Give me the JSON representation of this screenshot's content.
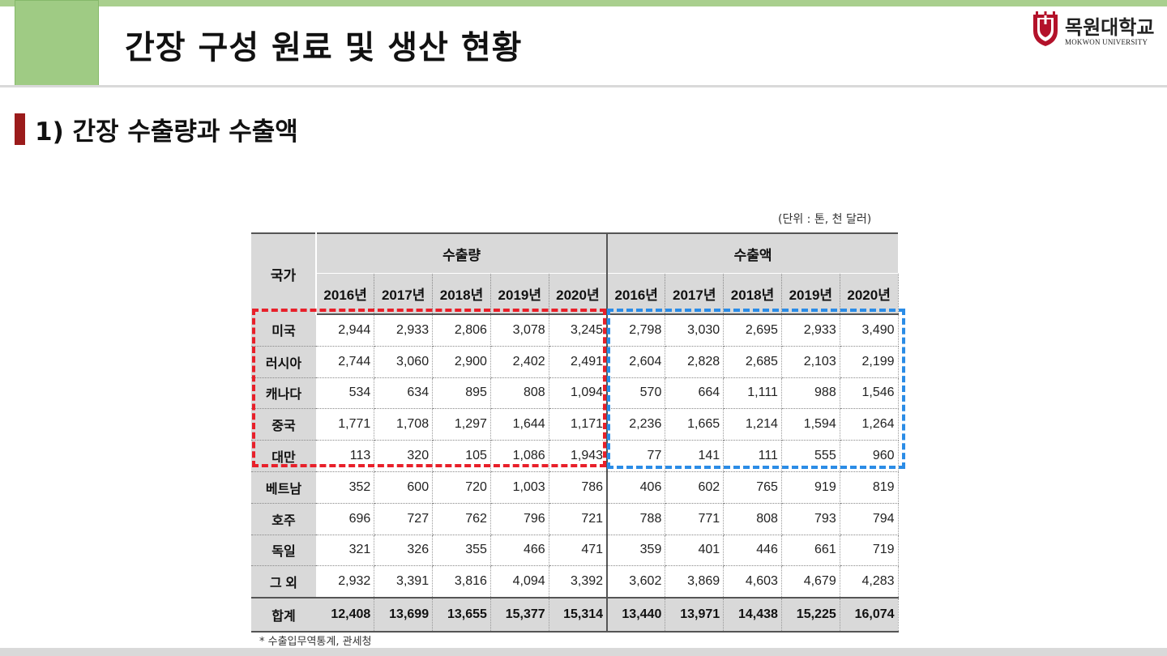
{
  "slide": {
    "title": "간장 구성 원료 및 생산 현황",
    "section_title": "1) 간장 수출량과 수출액",
    "colors": {
      "accent_green": "#9fcb84",
      "section_bar": "#9b1b1b",
      "highlight_red": "#e8202a",
      "highlight_blue": "#2b8ce6",
      "header_gray": "#d9d9d9"
    }
  },
  "logo": {
    "name": "목원대학교",
    "subtitle": "MOKWON UNIVERSITY",
    "icon": "university-emblem-icon"
  },
  "table": {
    "unit_note": "(단위 : 톤, 천 달러)",
    "country_header": "국가",
    "volume_header": "수출량",
    "amount_header": "수출액",
    "years": [
      "2016년",
      "2017년",
      "2018년",
      "2019년",
      "2020년"
    ],
    "rows": [
      {
        "country": "미국",
        "volume": [
          "2,944",
          "2,933",
          "2,806",
          "3,078",
          "3,245"
        ],
        "amount": [
          "2,798",
          "3,030",
          "2,695",
          "2,933",
          "3,490"
        ]
      },
      {
        "country": "러시아",
        "volume": [
          "2,744",
          "3,060",
          "2,900",
          "2,402",
          "2,491"
        ],
        "amount": [
          "2,604",
          "2,828",
          "2,685",
          "2,103",
          "2,199"
        ]
      },
      {
        "country": "캐나다",
        "volume": [
          "534",
          "634",
          "895",
          "808",
          "1,094"
        ],
        "amount": [
          "570",
          "664",
          "1,111",
          "988",
          "1,546"
        ]
      },
      {
        "country": "중국",
        "volume": [
          "1,771",
          "1,708",
          "1,297",
          "1,644",
          "1,171"
        ],
        "amount": [
          "2,236",
          "1,665",
          "1,214",
          "1,594",
          "1,264"
        ]
      },
      {
        "country": "대만",
        "volume": [
          "113",
          "320",
          "105",
          "1,086",
          "1,943"
        ],
        "amount": [
          "77",
          "141",
          "111",
          "555",
          "960"
        ]
      },
      {
        "country": "베트남",
        "volume": [
          "352",
          "600",
          "720",
          "1,003",
          "786"
        ],
        "amount": [
          "406",
          "602",
          "765",
          "919",
          "819"
        ]
      },
      {
        "country": "호주",
        "volume": [
          "696",
          "727",
          "762",
          "796",
          "721"
        ],
        "amount": [
          "788",
          "771",
          "808",
          "793",
          "794"
        ]
      },
      {
        "country": "독일",
        "volume": [
          "321",
          "326",
          "355",
          "466",
          "471"
        ],
        "amount": [
          "359",
          "401",
          "446",
          "661",
          "719"
        ]
      },
      {
        "country": "그 외",
        "volume": [
          "2,932",
          "3,391",
          "3,816",
          "4,094",
          "3,392"
        ],
        "amount": [
          "3,602",
          "3,869",
          "4,603",
          "4,679",
          "4,283"
        ]
      }
    ],
    "total": {
      "country": "합계",
      "volume": [
        "12,408",
        "13,699",
        "13,655",
        "15,377",
        "15,314"
      ],
      "amount": [
        "13,440",
        "13,971",
        "14,438",
        "15,225",
        "16,074"
      ]
    },
    "source_note": "* 수출입무역통계, 관세청"
  }
}
